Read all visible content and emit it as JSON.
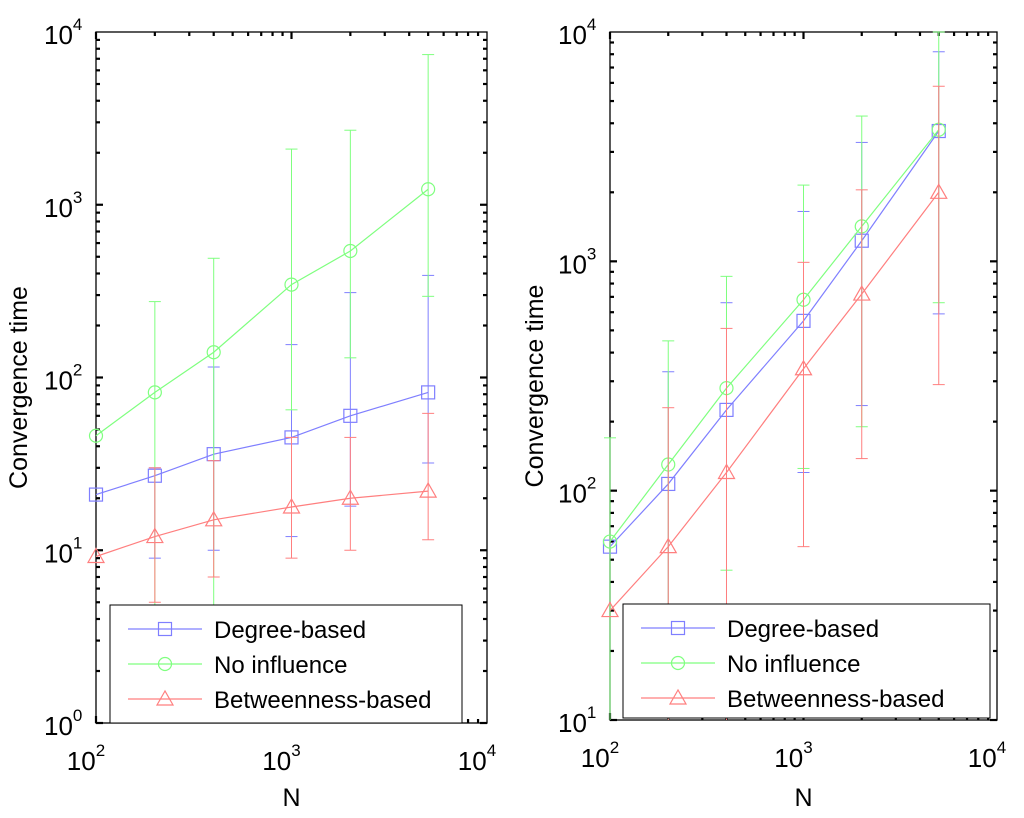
{
  "colors": {
    "degree": "#7f7fff",
    "no_influence": "#7fff7f",
    "betweenness": "#ff7f7f",
    "axis": "#000000",
    "background": "#ffffff"
  },
  "chart_data": [
    {
      "type": "line",
      "title": "",
      "xlabel": "N",
      "ylabel": "Convergence time",
      "xscale": "log",
      "yscale": "log",
      "xlim": [
        100,
        10000
      ],
      "ylim": [
        1,
        10000
      ],
      "x_ticks": [
        {
          "value": 100,
          "base": "10",
          "exp": "2"
        },
        {
          "value": 1000,
          "base": "10",
          "exp": "3"
        },
        {
          "value": 10000,
          "base": "10",
          "exp": "4"
        }
      ],
      "y_ticks": [
        {
          "value": 1,
          "base": "10",
          "exp": "0"
        },
        {
          "value": 10,
          "base": "10",
          "exp": "1"
        },
        {
          "value": 100,
          "base": "10",
          "exp": "2"
        },
        {
          "value": 1000,
          "base": "10",
          "exp": "3"
        },
        {
          "value": 10000,
          "base": "10",
          "exp": "4"
        }
      ],
      "legend_position": "bottom",
      "x": [
        100,
        200,
        400,
        1000,
        2000,
        5000
      ],
      "series": [
        {
          "name": "Degree-based",
          "color_key": "degree",
          "marker": "square",
          "values": [
            21,
            27,
            36,
            45,
            60,
            82
          ],
          "err_low": [
            0,
            9,
            10,
            12,
            18,
            32
          ],
          "err_high": [
            0,
            30,
            115,
            155,
            310,
            390
          ]
        },
        {
          "name": "No influence",
          "color_key": "no_influence",
          "marker": "circle",
          "values": [
            46,
            82,
            140,
            345,
            540,
            1230
          ],
          "err_low": [
            0,
            0,
            0,
            65,
            130,
            295
          ],
          "err_high": [
            0,
            275,
            490,
            2100,
            2700,
            7400
          ]
        },
        {
          "name": "Betweenness-based",
          "color_key": "betweenness",
          "marker": "triangle",
          "values": [
            9.2,
            12,
            15,
            17.8,
            20,
            22
          ],
          "err_low": [
            0,
            5,
            7,
            9,
            10,
            11.5
          ],
          "err_high": [
            0,
            30,
            33,
            45,
            45,
            62
          ]
        }
      ]
    },
    {
      "type": "line",
      "title": "",
      "xlabel": "N",
      "ylabel": "Convergence time",
      "xscale": "log",
      "yscale": "log",
      "xlim": [
        100,
        10000
      ],
      "ylim": [
        10,
        10000
      ],
      "x_ticks": [
        {
          "value": 100,
          "base": "10",
          "exp": "2"
        },
        {
          "value": 1000,
          "base": "10",
          "exp": "3"
        },
        {
          "value": 10000,
          "base": "10",
          "exp": "4"
        }
      ],
      "y_ticks": [
        {
          "value": 10,
          "base": "10",
          "exp": "1"
        },
        {
          "value": 100,
          "base": "10",
          "exp": "2"
        },
        {
          "value": 1000,
          "base": "10",
          "exp": "3"
        },
        {
          "value": 10000,
          "base": "10",
          "exp": "4"
        }
      ],
      "legend_position": "bottom",
      "x": [
        100,
        200,
        400,
        1000,
        2000,
        5000
      ],
      "series": [
        {
          "name": "Degree-based",
          "color_key": "degree",
          "marker": "square",
          "values": [
            57,
            107,
            225,
            550,
            1230,
            3700
          ],
          "err_low": [
            0,
            0,
            0,
            120,
            235,
            590
          ],
          "err_high": [
            0,
            330,
            660,
            1650,
            3300,
            8200
          ]
        },
        {
          "name": "No influence",
          "color_key": "no_influence",
          "marker": "circle",
          "values": [
            60,
            130,
            280,
            680,
            1420,
            3750
          ],
          "err_low": [
            0,
            0,
            45,
            125,
            190,
            660
          ],
          "err_high": [
            170,
            450,
            860,
            2150,
            4300,
            10000
          ]
        },
        {
          "name": "Betweenness-based",
          "color_key": "betweenness",
          "marker": "triangle",
          "values": [
            30,
            57,
            120,
            340,
            720,
            2000
          ],
          "err_low": [
            0,
            0,
            0,
            57,
            138,
            290
          ],
          "err_high": [
            0,
            230,
            510,
            990,
            2050,
            5800
          ]
        }
      ]
    }
  ]
}
